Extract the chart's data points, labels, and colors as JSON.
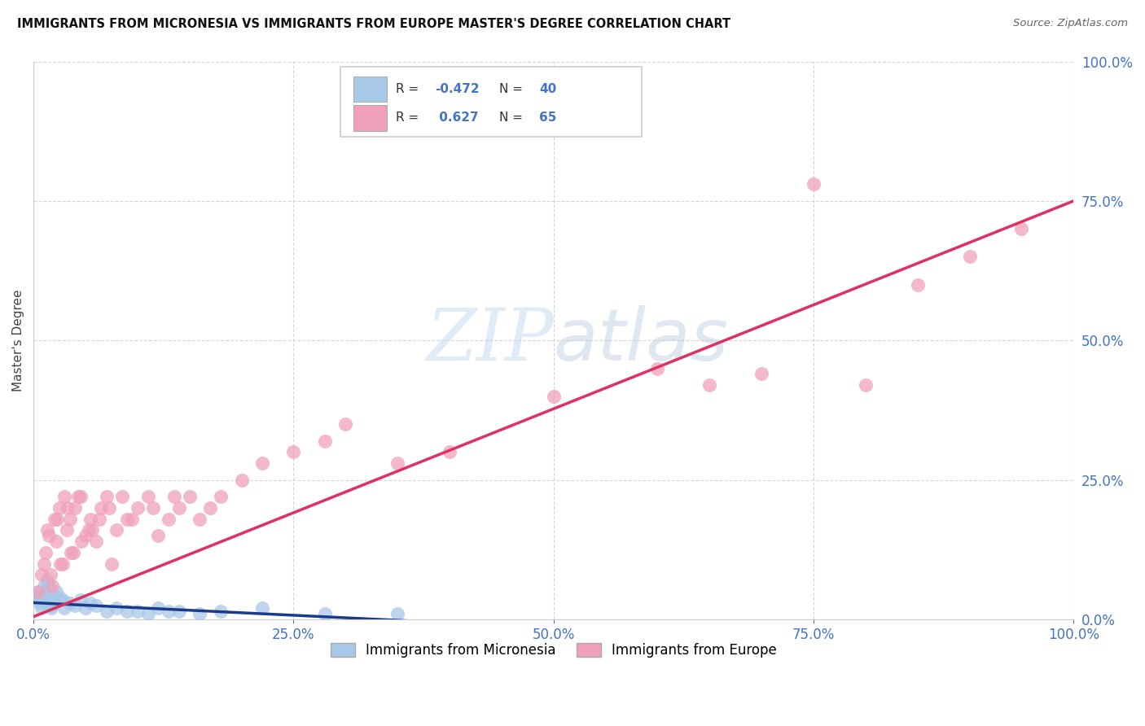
{
  "title": "IMMIGRANTS FROM MICRONESIA VS IMMIGRANTS FROM EUROPE MASTER'S DEGREE CORRELATION CHART",
  "source": "Source: ZipAtlas.com",
  "ylabel": "Master's Degree",
  "r_micronesia": -0.472,
  "n_micronesia": 40,
  "r_europe": 0.627,
  "n_europe": 65,
  "color_micronesia": "#a8c8e8",
  "color_europe": "#f0a0b8",
  "line_color_micronesia": "#1a3a8c",
  "line_color_europe": "#e03060",
  "background_color": "#ffffff",
  "grid_color": "#cccccc",
  "micronesia_x": [
    0.3,
    0.5,
    0.7,
    0.8,
    1.0,
    1.1,
    1.2,
    1.3,
    1.5,
    1.6,
    1.8,
    2.0,
    2.2,
    2.5,
    2.8,
    3.0,
    3.5,
    4.0,
    4.5,
    5.0,
    5.5,
    6.0,
    7.0,
    8.0,
    9.0,
    10.0,
    11.0,
    12.0,
    13.0,
    14.0,
    16.0,
    18.0,
    22.0,
    28.0,
    35.0,
    0.4,
    0.6,
    0.9,
    1.4,
    1.7
  ],
  "micronesia_y": [
    3.5,
    5.0,
    4.0,
    2.0,
    6.0,
    3.0,
    4.5,
    7.0,
    5.5,
    2.5,
    4.0,
    3.0,
    5.0,
    4.0,
    3.5,
    2.0,
    3.0,
    2.5,
    3.5,
    2.0,
    3.0,
    2.5,
    1.5,
    2.0,
    1.5,
    1.5,
    1.0,
    2.0,
    1.5,
    1.5,
    1.0,
    1.5,
    2.0,
    1.0,
    1.0,
    4.0,
    3.0,
    5.0,
    6.5,
    2.0
  ],
  "europe_x": [
    0.5,
    0.8,
    1.0,
    1.2,
    1.5,
    1.8,
    2.0,
    2.2,
    2.5,
    2.8,
    3.0,
    3.2,
    3.5,
    3.8,
    4.0,
    4.5,
    5.0,
    5.5,
    6.0,
    6.5,
    7.0,
    7.5,
    8.0,
    9.0,
    10.0,
    11.0,
    12.0,
    13.0,
    14.0,
    15.0,
    16.0,
    17.0,
    18.0,
    20.0,
    22.0,
    25.0,
    28.0,
    30.0,
    35.0,
    40.0,
    1.3,
    2.3,
    3.3,
    4.3,
    5.3,
    6.3,
    7.3,
    8.5,
    9.5,
    11.5,
    13.5,
    50.0,
    60.0,
    65.0,
    70.0,
    75.0,
    80.0,
    85.0,
    90.0,
    95.0,
    1.6,
    2.6,
    3.6,
    4.6,
    5.6
  ],
  "europe_y": [
    5.0,
    8.0,
    10.0,
    12.0,
    15.0,
    6.0,
    18.0,
    14.0,
    20.0,
    10.0,
    22.0,
    16.0,
    18.0,
    12.0,
    20.0,
    22.0,
    15.0,
    18.0,
    14.0,
    20.0,
    22.0,
    10.0,
    16.0,
    18.0,
    20.0,
    22.0,
    15.0,
    18.0,
    20.0,
    22.0,
    18.0,
    20.0,
    22.0,
    25.0,
    28.0,
    30.0,
    32.0,
    35.0,
    28.0,
    30.0,
    16.0,
    18.0,
    20.0,
    22.0,
    16.0,
    18.0,
    20.0,
    22.0,
    18.0,
    20.0,
    22.0,
    40.0,
    45.0,
    42.0,
    44.0,
    78.0,
    42.0,
    60.0,
    65.0,
    70.0,
    8.0,
    10.0,
    12.0,
    14.0,
    16.0
  ]
}
